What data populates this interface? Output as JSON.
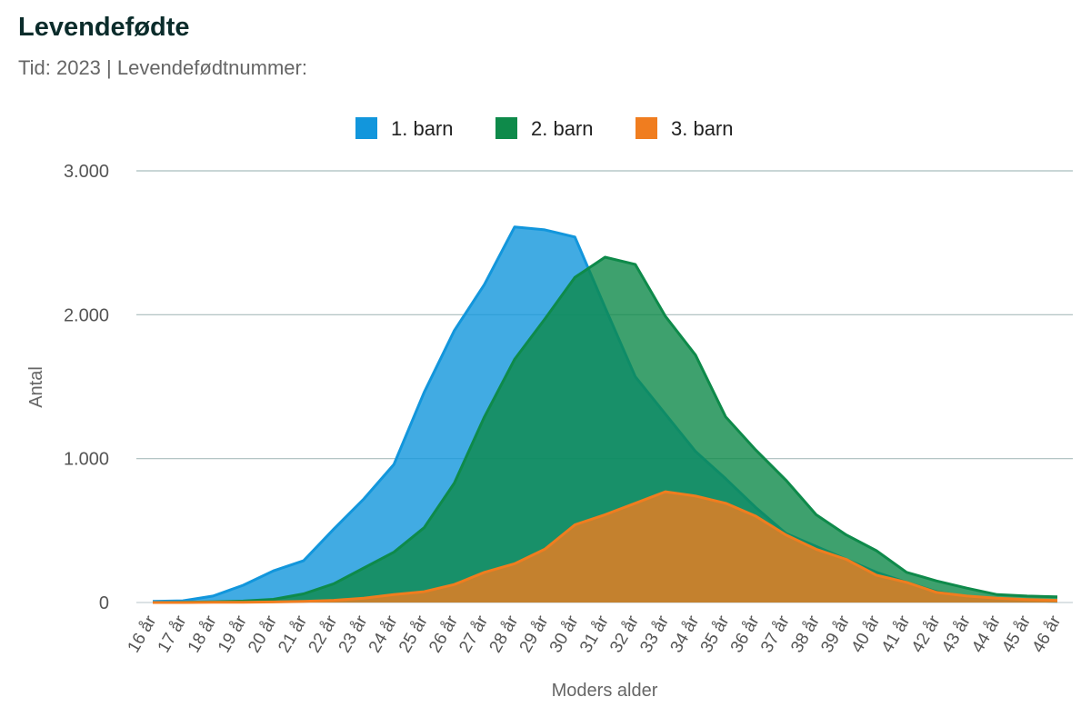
{
  "header": {
    "title": "Levendefødte",
    "subtitle": "Tid: 2023 | Levendefødtnummer:"
  },
  "chart_data": {
    "type": "area",
    "x_label": "Moders alder",
    "y_label": "Antal",
    "ylim": [
      0,
      3000
    ],
    "y_ticks": [
      0,
      1000,
      2000,
      3000
    ],
    "y_tick_labels": [
      "0",
      "1.000",
      "2.000",
      "3.000"
    ],
    "grid": true,
    "legend_position": "top-center",
    "categories": [
      "16 år",
      "17 år",
      "18 år",
      "19 år",
      "20 år",
      "21 år",
      "22 år",
      "23 år",
      "24 år",
      "25 år",
      "26 år",
      "27 år",
      "28 år",
      "29 år",
      "30 år",
      "31 år",
      "32 år",
      "33 år",
      "34 år",
      "35 år",
      "36 år",
      "37 år",
      "38 år",
      "39 år",
      "40 år",
      "41 år",
      "42 år",
      "43 år",
      "44 år",
      "45 år",
      "46 år"
    ],
    "series": [
      {
        "name": "1. barn",
        "color": "#1296dc",
        "values": [
          8,
          12,
          45,
          120,
          220,
          290,
          510,
          720,
          960,
          1460,
          1890,
          2210,
          2610,
          2590,
          2540,
          2050,
          1570,
          1310,
          1050,
          860,
          660,
          480,
          390,
          300,
          210,
          140,
          75,
          40,
          25,
          12,
          8
        ]
      },
      {
        "name": "2. barn",
        "color": "#0e8a4a",
        "values": [
          0,
          2,
          5,
          10,
          22,
          60,
          130,
          240,
          350,
          520,
          830,
          1290,
          1690,
          1970,
          2260,
          2400,
          2350,
          1990,
          1720,
          1290,
          1060,
          850,
          610,
          470,
          360,
          210,
          150,
          100,
          55,
          45,
          40
        ]
      },
      {
        "name": "3. barn",
        "color": "#f07d1f",
        "values": [
          0,
          0,
          1,
          2,
          4,
          8,
          15,
          30,
          55,
          75,
          125,
          210,
          270,
          370,
          540,
          610,
          690,
          770,
          740,
          690,
          600,
          470,
          370,
          300,
          190,
          140,
          70,
          45,
          30,
          20,
          15
        ]
      }
    ]
  }
}
